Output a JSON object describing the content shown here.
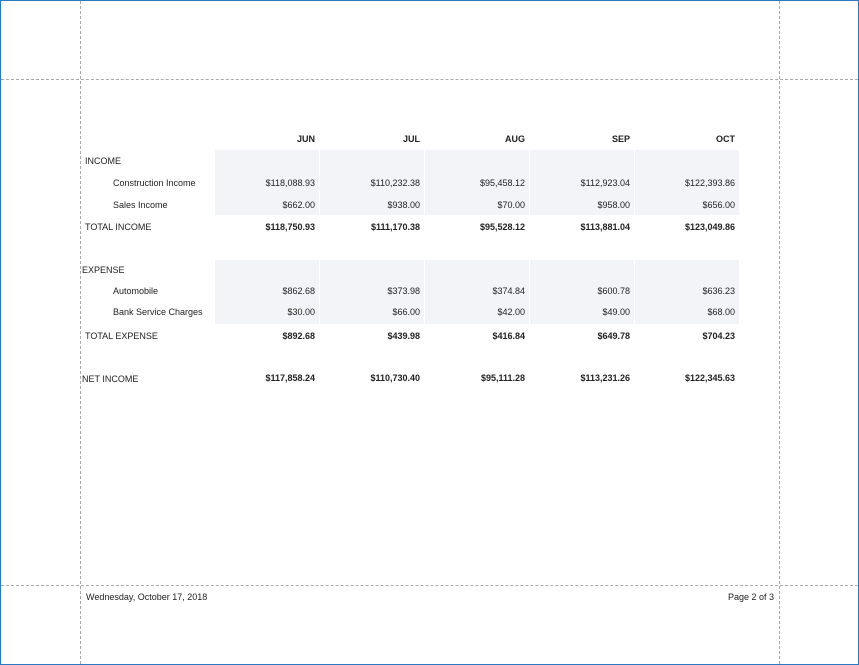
{
  "columns": [
    "JUN",
    "JUL",
    "AUG",
    "SEP",
    "OCT"
  ],
  "income": {
    "label": "INCOME",
    "rows": [
      {
        "label": "Construction Income",
        "values": [
          "$118,088.93",
          "$110,232.38",
          "$95,458.12",
          "$112,923.04",
          "$122,393.86"
        ]
      },
      {
        "label": "Sales Income",
        "values": [
          "$662.00",
          "$938.00",
          "$70.00",
          "$958.00",
          "$656.00"
        ]
      }
    ],
    "total": {
      "label": "TOTAL INCOME",
      "values": [
        "$118,750.93",
        "$111,170.38",
        "$95,528.12",
        "$113,881.04",
        "$123,049.86"
      ]
    }
  },
  "expense": {
    "label": "EXPENSE",
    "rows": [
      {
        "label": "Automobile",
        "values": [
          "$862.68",
          "$373.98",
          "$374.84",
          "$600.78",
          "$636.23"
        ]
      },
      {
        "label": "Bank Service Charges",
        "values": [
          "$30.00",
          "$66.00",
          "$42.00",
          "$49.00",
          "$68.00"
        ]
      }
    ],
    "total": {
      "label": "TOTAL EXPENSE",
      "values": [
        "$892.68",
        "$439.98",
        "$416.84",
        "$649.78",
        "$704.23"
      ]
    }
  },
  "net_income": {
    "label": "NET INCOME",
    "values": [
      "$117,858.24",
      "$110,730.40",
      "$95,111.28",
      "$113,231.26",
      "$122,345.63"
    ]
  },
  "footer": {
    "date": "Wednesday, October 17, 2018",
    "page": "Page 2 of 3"
  }
}
